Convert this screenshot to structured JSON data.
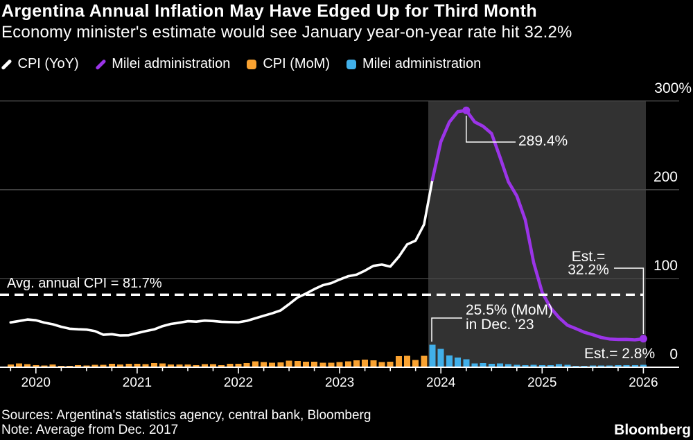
{
  "header": {
    "title": "Argentina Annual Inflation May Have Edged Up for Third Month",
    "subtitle": "Economy minister's estimate would see January year-on-year rate hit 32.2%"
  },
  "colors": {
    "background": "#000000",
    "grid": "#4a4a4a",
    "shade": "#323232",
    "axis": "#ffffff",
    "white_line": "#ffffff",
    "purple": "#9b34e8",
    "orange": "#f9a231",
    "blue": "#41b0ea"
  },
  "legend": {
    "items": [
      {
        "label": "CPI (YoY)",
        "color": "#ffffff",
        "marker": "slash"
      },
      {
        "label": "Milei administration",
        "color": "#9b34e8",
        "marker": "slash"
      },
      {
        "label": "CPI (MoM)",
        "color": "#f9a231",
        "marker": "square"
      },
      {
        "label": "Milei administration",
        "color": "#41b0ea",
        "marker": "square"
      }
    ]
  },
  "chart_data": {
    "type": "composite",
    "x_start": "Oct 2019",
    "x_end": "Jan 2026",
    "x_tick_years": [
      "2020",
      "2021",
      "2022",
      "2023",
      "2024",
      "2025",
      "2026"
    ],
    "y_axis": {
      "max": 320,
      "ticks": [
        {
          "label": "300%",
          "value": 300
        },
        {
          "label": "200",
          "value": 200
        },
        {
          "label": "100",
          "value": 100
        },
        {
          "label": "0",
          "value": 0
        }
      ]
    },
    "series": [
      {
        "name": "CPI (YoY)",
        "type": "line",
        "color": "#ffffff",
        "start_offset": 0,
        "values": [
          50.5,
          52.1,
          53.8,
          52.9,
          50.3,
          48.4,
          45.6,
          43.4,
          42.8,
          42.4,
          40.7,
          36.6,
          37.2,
          35.8,
          36.1,
          38.5,
          40.7,
          42.6,
          46.3,
          48.8,
          50.2,
          51.8,
          51.4,
          52.5,
          52.1,
          51.2,
          50.9,
          50.7,
          52.3,
          55.1,
          58.0,
          60.7,
          64.0,
          71.0,
          78.5,
          83.0,
          88.0,
          92.4,
          94.8,
          98.8,
          102.5,
          104.3,
          108.8,
          114.2,
          115.6,
          113.4,
          124.4,
          138.3,
          142.7,
          160.9,
          211.4
        ]
      },
      {
        "name": "Milei administration (YoY)",
        "type": "line",
        "color": "#9b34e8",
        "start_offset": 50,
        "values": [
          211.4,
          254.2,
          276.2,
          287.9,
          289.4,
          276.4,
          271.5,
          263.4,
          236.7,
          209.0,
          193.0,
          166.0,
          117.8,
          84.5,
          66.9,
          55.9,
          47.3,
          43.5,
          39.4,
          36.6,
          33.6,
          31.8,
          31.3,
          31.4,
          30.8,
          32.2
        ]
      },
      {
        "name": "CPI (MoM)",
        "type": "bar",
        "color": "#f9a231",
        "start_offset": 0,
        "values": [
          3.3,
          4.3,
          3.7,
          2.3,
          2.0,
          3.3,
          1.5,
          1.5,
          2.2,
          1.9,
          2.7,
          2.8,
          3.8,
          3.2,
          4.0,
          4.0,
          3.6,
          4.8,
          4.1,
          3.3,
          3.2,
          3.0,
          2.5,
          3.5,
          3.5,
          2.5,
          3.8,
          3.9,
          4.7,
          6.7,
          6.0,
          5.1,
          5.3,
          7.4,
          7.0,
          6.2,
          6.3,
          4.9,
          5.1,
          6.0,
          6.6,
          7.7,
          8.4,
          7.8,
          6.0,
          6.3,
          12.4,
          12.7,
          8.3,
          12.8
        ]
      },
      {
        "name": "Milei administration (MoM)",
        "type": "bar",
        "color": "#41b0ea",
        "start_offset": 50,
        "values": [
          25.5,
          20.6,
          13.2,
          11.0,
          8.8,
          4.2,
          4.6,
          4.0,
          4.2,
          3.5,
          2.7,
          2.4,
          2.7,
          2.2,
          2.4,
          3.7,
          2.8,
          1.5,
          1.6,
          1.9,
          1.9,
          2.1,
          2.3,
          2.5,
          2.4,
          2.8
        ]
      }
    ],
    "avg_line": {
      "label": "Avg. annual CPI = 81.7%",
      "value": 81.7
    },
    "shaded_region": {
      "start": "Dec 2023",
      "end": "Jan 2026"
    },
    "annotations": {
      "peak": "289.4%",
      "mom_line1": "25.5% (MoM)",
      "mom_line2": "in Dec. '23",
      "est_yoy_line1": "Est.=",
      "est_yoy_line2": "32.2%",
      "est_mom": "Est.= 2.8%"
    }
  },
  "footer": {
    "sources": "Sources: Argentina's statistics agency, central bank, Bloomberg",
    "note": "Note: Average from Dec. 2017",
    "brand": "Bloomberg"
  }
}
